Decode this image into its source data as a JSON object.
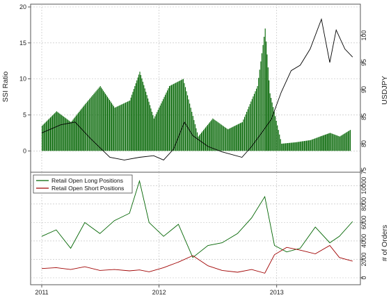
{
  "chart_data": [
    {
      "type": "bar",
      "title": "",
      "ylabel": "SSI Ratio",
      "ylim": [
        -2,
        20
      ],
      "yticks": [
        "0",
        "5",
        "10",
        "15",
        "20"
      ],
      "grid": true,
      "colors": {
        "positive": "#006400",
        "negative": "#a00000"
      },
      "series": [
        {
          "kind": "bar",
          "x": [
            "2011-01-01",
            "2011-02-15",
            "2011-04-01",
            "2011-05-15",
            "2011-07-01",
            "2011-08-15",
            "2011-10-01",
            "2011-11-01",
            "2011-12-15",
            "2012-02-01",
            "2012-03-15",
            "2012-05-01",
            "2012-06-15",
            "2012-08-01",
            "2012-09-15",
            "2012-11-01",
            "2012-11-25",
            "2012-12-10",
            "2013-01-15",
            "2013-03-01",
            "2013-04-15",
            "2013-05-15",
            "2013-06-15",
            "2013-07-15",
            "2013-08-20"
          ],
          "values": [
            3.5,
            5.5,
            4.0,
            6.5,
            9.0,
            6.0,
            7.0,
            11.0,
            4.5,
            9.0,
            10.0,
            2.0,
            4.5,
            3.0,
            4.0,
            9.0,
            17.0,
            8.0,
            1.0,
            1.2,
            1.5,
            2.0,
            2.5,
            2.0,
            3.0
          ]
        }
      ]
    },
    {
      "type": "line",
      "ylabel": "USDJPY",
      "ylim": [
        75,
        105
      ],
      "yticks": [
        "75",
        "80",
        "85",
        "90",
        "95",
        "100"
      ],
      "color": "#000000",
      "x": [
        "2011-01-01",
        "2011-03-01",
        "2011-04-15",
        "2011-06-01",
        "2011-08-01",
        "2011-09-15",
        "2011-11-01",
        "2011-12-15",
        "2012-01-15",
        "2012-02-15",
        "2012-03-20",
        "2012-04-15",
        "2012-06-01",
        "2012-07-15",
        "2012-09-15",
        "2012-10-15",
        "2012-11-15",
        "2012-12-15",
        "2013-01-15",
        "2013-02-15",
        "2013-03-15",
        "2013-04-15",
        "2013-05-20",
        "2013-06-15",
        "2013-07-05",
        "2013-08-01",
        "2013-08-25"
      ],
      "values": [
        82.0,
        83.5,
        84.0,
        81.0,
        77.5,
        77.0,
        77.5,
        77.8,
        77.0,
        79.0,
        84.0,
        81.5,
        79.5,
        78.5,
        77.5,
        79.5,
        82.0,
        84.5,
        89.5,
        93.5,
        94.5,
        97.5,
        103.0,
        95.0,
        101.0,
        97.5,
        96.0
      ]
    },
    {
      "type": "line",
      "ylabel": "# of Orders",
      "ylim": [
        0,
        11000
      ],
      "yticks": [
        "0",
        "2000",
        "4000",
        "6000",
        "8000",
        "10000"
      ],
      "grid": true,
      "legend_position": "top-left",
      "xticks": [
        "2011",
        "2012",
        "2013"
      ],
      "x": [
        "2011-01-01",
        "2011-02-15",
        "2011-04-01",
        "2011-05-15",
        "2011-07-01",
        "2011-08-15",
        "2011-10-01",
        "2011-11-01",
        "2011-12-01",
        "2012-01-15",
        "2012-03-01",
        "2012-04-15",
        "2012-06-01",
        "2012-07-15",
        "2012-09-01",
        "2012-10-15",
        "2012-11-25",
        "2012-12-25",
        "2013-02-01",
        "2013-03-15",
        "2013-05-01",
        "2013-06-15",
        "2013-07-15",
        "2013-08-25"
      ],
      "series": [
        {
          "name": "Retail Open Long Positions",
          "color": "#006400",
          "values": [
            4500,
            5200,
            3200,
            6000,
            4800,
            6200,
            7000,
            10500,
            6000,
            4500,
            5800,
            2200,
            3500,
            3800,
            4800,
            6500,
            8800,
            3500,
            2800,
            3200,
            5500,
            3800,
            4500,
            6100
          ]
        },
        {
          "name": "Retail Open Short Positions",
          "color": "#a00000",
          "values": [
            1000,
            1100,
            900,
            1200,
            800,
            900,
            750,
            850,
            650,
            1100,
            1700,
            2400,
            1300,
            800,
            600,
            900,
            500,
            2500,
            3300,
            3000,
            2600,
            3500,
            2200,
            1800
          ]
        }
      ]
    }
  ]
}
